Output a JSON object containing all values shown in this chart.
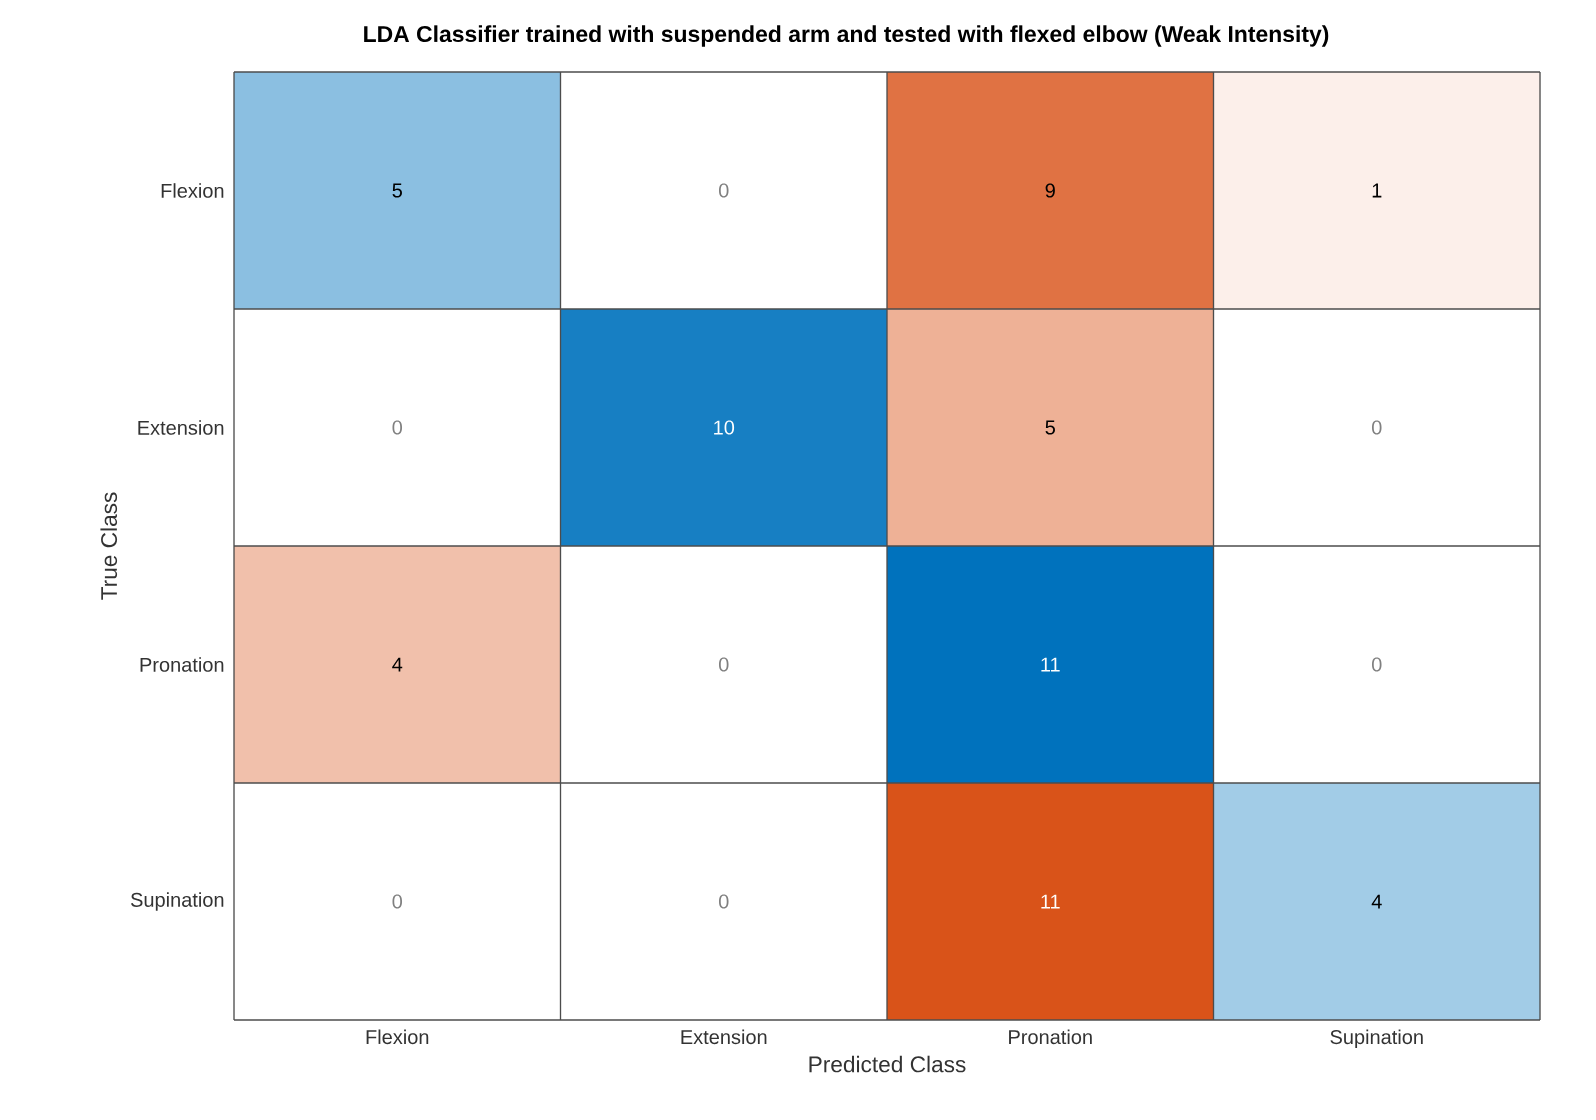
{
  "chart_data": {
    "type": "heatmap",
    "title": "LDA Classifier trained with suspended arm and tested with flexed elbow (Weak Intensity)",
    "xlabel": "Predicted Class",
    "ylabel": "True Class",
    "categories": [
      "Flexion",
      "Extension",
      "Pronation",
      "Supination"
    ],
    "y_categories": [
      "Flexion",
      "Extension",
      "Pronation",
      "Supination"
    ],
    "cells": [
      [
        5,
        0,
        9,
        1
      ],
      [
        0,
        10,
        5,
        0
      ],
      [
        4,
        0,
        11,
        0
      ],
      [
        0,
        0,
        11,
        4
      ]
    ],
    "data_labels": true,
    "colors": [
      "#0072bd",
      "#d95319"
    ]
  }
}
